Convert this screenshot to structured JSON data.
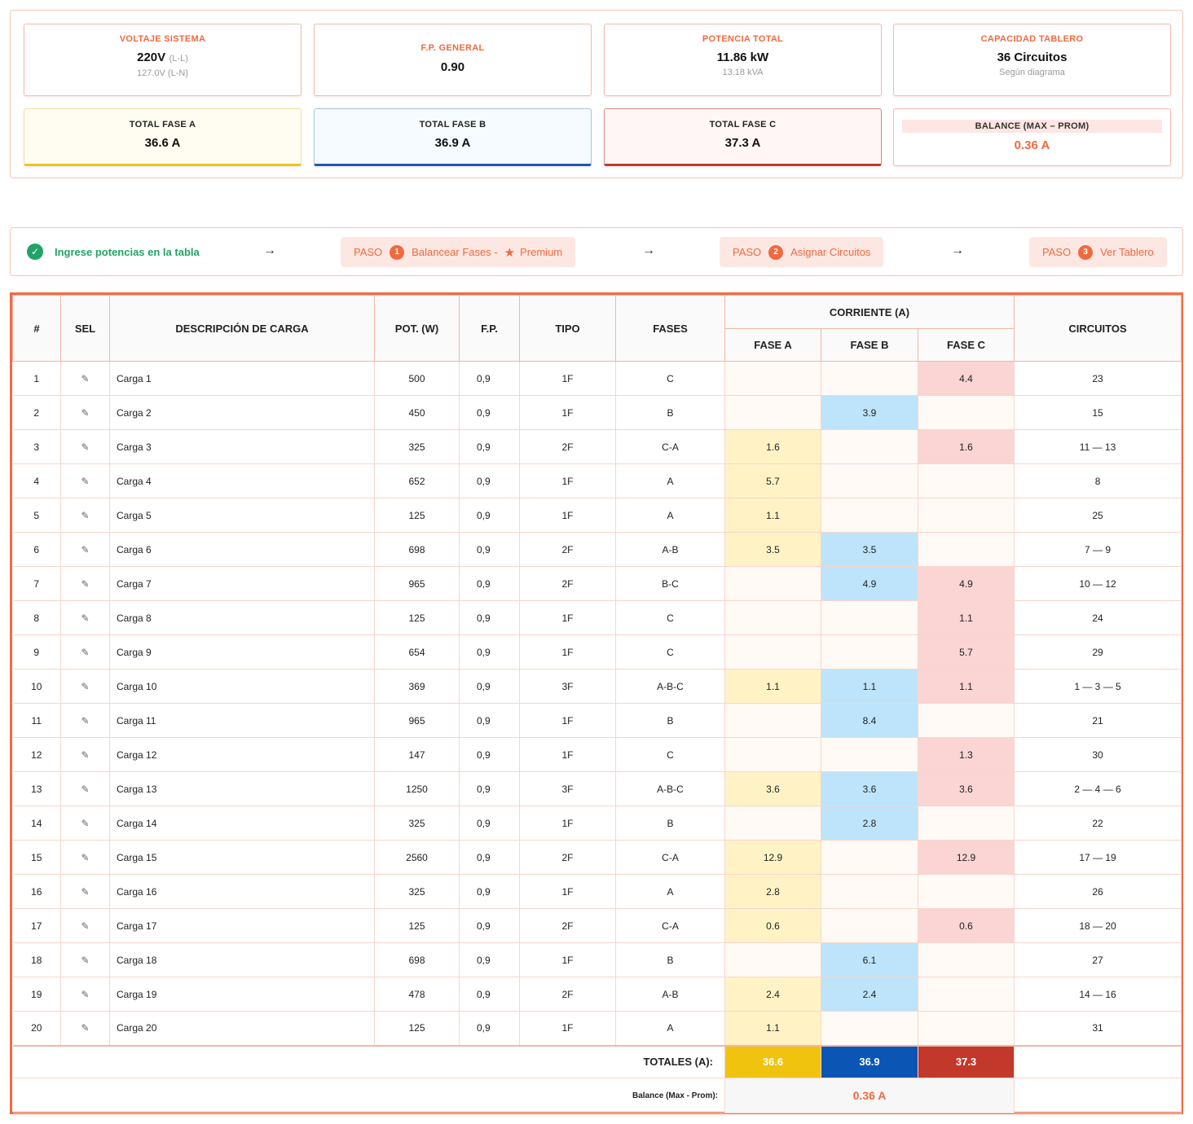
{
  "summary": {
    "voltaje": {
      "label": "VOLTAJE SISTEMA",
      "value": "220V",
      "unit": "(L-L)",
      "sub": "127.0V (L-N)"
    },
    "fp": {
      "label": "F.P. GENERAL",
      "value": "0.90"
    },
    "potencia": {
      "label": "POTENCIA TOTAL",
      "value": "11.86 kW",
      "sub": "13.18 kVA"
    },
    "capacidad": {
      "label": "CAPACIDAD TABLERO",
      "value": "36 Circuitos",
      "sub": "Según diagrama"
    },
    "fase_a": {
      "label": "TOTAL FASE A",
      "value": "36.6 A"
    },
    "fase_b": {
      "label": "TOTAL FASE B",
      "value": "36.9 A"
    },
    "fase_c": {
      "label": "TOTAL FASE C",
      "value": "37.3 A"
    },
    "balance": {
      "label": "BALANCE (MAX – PROM)",
      "value": "0.36 A"
    }
  },
  "steps": {
    "done_text": "Ingrese potencias en la tabla",
    "arrow": "→",
    "step1": {
      "paso": "PASO",
      "num": "1",
      "label": "Balancear Fases -",
      "premium": "Premium"
    },
    "step2": {
      "paso": "PASO",
      "num": "2",
      "label": "Asignar Circuitos"
    },
    "step3": {
      "paso": "PASO",
      "num": "3",
      "label": "Ver Tablero"
    }
  },
  "table": {
    "headers": {
      "num": "#",
      "sel": "SEL",
      "desc": "DESCRIPCIÓN DE CARGA",
      "pot": "POT. (W)",
      "fp": "F.P.",
      "tipo": "TIPO",
      "fases": "FASES",
      "corriente": "CORRIENTE (A)",
      "fase_a": "FASE A",
      "fase_b": "FASE B",
      "fase_c": "FASE C",
      "circuitos": "CIRCUITOS"
    },
    "sel_icon": "pencil-icon",
    "rows": [
      {
        "n": "1",
        "desc": "Carga 1",
        "pot": "500",
        "fp": "0,9",
        "tipo": "1F",
        "fases": "C",
        "a": "",
        "b": "",
        "c": "4.4",
        "circ": "23"
      },
      {
        "n": "2",
        "desc": "Carga 2",
        "pot": "450",
        "fp": "0,9",
        "tipo": "1F",
        "fases": "B",
        "a": "",
        "b": "3.9",
        "c": "",
        "circ": "15"
      },
      {
        "n": "3",
        "desc": "Carga 3",
        "pot": "325",
        "fp": "0,9",
        "tipo": "2F",
        "fases": "C-A",
        "a": "1.6",
        "b": "",
        "c": "1.6",
        "circ": "11 — 13"
      },
      {
        "n": "4",
        "desc": "Carga 4",
        "pot": "652",
        "fp": "0,9",
        "tipo": "1F",
        "fases": "A",
        "a": "5.7",
        "b": "",
        "c": "",
        "circ": "8"
      },
      {
        "n": "5",
        "desc": "Carga 5",
        "pot": "125",
        "fp": "0,9",
        "tipo": "1F",
        "fases": "A",
        "a": "1.1",
        "b": "",
        "c": "",
        "circ": "25"
      },
      {
        "n": "6",
        "desc": "Carga 6",
        "pot": "698",
        "fp": "0,9",
        "tipo": "2F",
        "fases": "A-B",
        "a": "3.5",
        "b": "3.5",
        "c": "",
        "circ": "7 — 9"
      },
      {
        "n": "7",
        "desc": "Carga 7",
        "pot": "965",
        "fp": "0,9",
        "tipo": "2F",
        "fases": "B-C",
        "a": "",
        "b": "4.9",
        "c": "4.9",
        "circ": "10 — 12"
      },
      {
        "n": "8",
        "desc": "Carga 8",
        "pot": "125",
        "fp": "0,9",
        "tipo": "1F",
        "fases": "C",
        "a": "",
        "b": "",
        "c": "1.1",
        "circ": "24"
      },
      {
        "n": "9",
        "desc": "Carga 9",
        "pot": "654",
        "fp": "0,9",
        "tipo": "1F",
        "fases": "C",
        "a": "",
        "b": "",
        "c": "5.7",
        "circ": "29"
      },
      {
        "n": "10",
        "desc": "Carga 10",
        "pot": "369",
        "fp": "0,9",
        "tipo": "3F",
        "fases": "A-B-C",
        "a": "1.1",
        "b": "1.1",
        "c": "1.1",
        "circ": "1 — 3 — 5"
      },
      {
        "n": "11",
        "desc": "Carga 11",
        "pot": "965",
        "fp": "0,9",
        "tipo": "1F",
        "fases": "B",
        "a": "",
        "b": "8.4",
        "c": "",
        "circ": "21"
      },
      {
        "n": "12",
        "desc": "Carga 12",
        "pot": "147",
        "fp": "0,9",
        "tipo": "1F",
        "fases": "C",
        "a": "",
        "b": "",
        "c": "1.3",
        "circ": "30"
      },
      {
        "n": "13",
        "desc": "Carga 13",
        "pot": "1250",
        "fp": "0,9",
        "tipo": "3F",
        "fases": "A-B-C",
        "a": "3.6",
        "b": "3.6",
        "c": "3.6",
        "circ": "2 — 4 — 6"
      },
      {
        "n": "14",
        "desc": "Carga 14",
        "pot": "325",
        "fp": "0,9",
        "tipo": "1F",
        "fases": "B",
        "a": "",
        "b": "2.8",
        "c": "",
        "circ": "22"
      },
      {
        "n": "15",
        "desc": "Carga 15",
        "pot": "2560",
        "fp": "0,9",
        "tipo": "2F",
        "fases": "C-A",
        "a": "12.9",
        "b": "",
        "c": "12.9",
        "circ": "17 — 19"
      },
      {
        "n": "16",
        "desc": "Carga 16",
        "pot": "325",
        "fp": "0,9",
        "tipo": "1F",
        "fases": "A",
        "a": "2.8",
        "b": "",
        "c": "",
        "circ": "26"
      },
      {
        "n": "17",
        "desc": "Carga 17",
        "pot": "125",
        "fp": "0,9",
        "tipo": "2F",
        "fases": "C-A",
        "a": "0.6",
        "b": "",
        "c": "0.6",
        "circ": "18 — 20"
      },
      {
        "n": "18",
        "desc": "Carga 18",
        "pot": "698",
        "fp": "0,9",
        "tipo": "1F",
        "fases": "B",
        "a": "",
        "b": "6.1",
        "c": "",
        "circ": "27"
      },
      {
        "n": "19",
        "desc": "Carga 19",
        "pot": "478",
        "fp": "0,9",
        "tipo": "2F",
        "fases": "A-B",
        "a": "2.4",
        "b": "2.4",
        "c": "",
        "circ": "14 — 16"
      },
      {
        "n": "20",
        "desc": "Carga 20",
        "pot": "125",
        "fp": "0,9",
        "tipo": "1F",
        "fases": "A",
        "a": "1.1",
        "b": "",
        "c": "",
        "circ": "31"
      }
    ],
    "totals": {
      "label": "TOTALES (A):",
      "a": "36.6",
      "b": "36.9",
      "c": "37.3"
    },
    "balance": {
      "label": "Balance (Max - Prom):",
      "value": "0.36 A"
    }
  },
  "colors": {
    "accent": "#f06a3f",
    "fase_a": "#f0c30e",
    "fase_b": "#0b55b5",
    "fase_c": "#c2382b",
    "success": "#21a366"
  }
}
